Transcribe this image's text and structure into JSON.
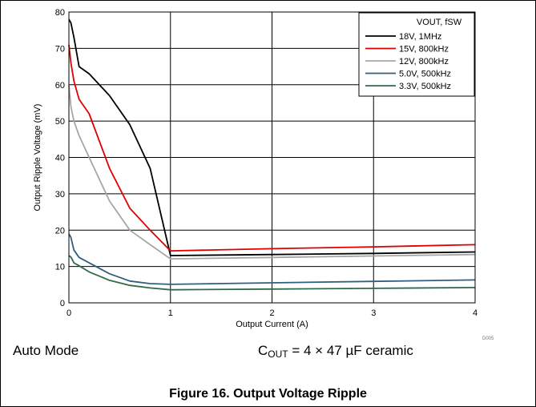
{
  "chart_data": {
    "type": "line",
    "xlabel": "Output Current (A)",
    "ylabel": "Output Ripple Voltage (mV)",
    "xlim": [
      0,
      4
    ],
    "ylim": [
      0,
      80
    ],
    "xticks": [
      "0",
      "1",
      "2",
      "3",
      "4"
    ],
    "yticks": [
      "0",
      "10",
      "20",
      "30",
      "40",
      "50",
      "60",
      "70",
      "80"
    ],
    "grid": true,
    "legend_position": "top-right",
    "legend_title": "VOUT, fSW",
    "figure_id": "D005",
    "series": [
      {
        "name": "18V, 1MHz",
        "color": "#000000",
        "x": [
          0,
          0.02,
          0.05,
          0.1,
          0.2,
          0.4,
          0.6,
          0.8,
          1.0,
          2.0,
          3.0,
          4.0
        ],
        "y": [
          78,
          77,
          73,
          65,
          63,
          57,
          49,
          37,
          13,
          13.3,
          13.6,
          14
        ]
      },
      {
        "name": "15V, 800kHz",
        "color": "#e00000",
        "x": [
          0,
          0.02,
          0.05,
          0.1,
          0.2,
          0.4,
          0.6,
          0.8,
          1.0,
          2.0,
          3.0,
          4.0
        ],
        "y": [
          71,
          66,
          61,
          56,
          52,
          37,
          26,
          20,
          14.3,
          14.9,
          15.4,
          16
        ]
      },
      {
        "name": "12V, 800kHz",
        "color": "#a6a6a6",
        "x": [
          0,
          0.02,
          0.05,
          0.1,
          0.2,
          0.4,
          0.6,
          0.8,
          1.0,
          2.0,
          3.0,
          4.0
        ],
        "y": [
          60,
          54,
          50,
          46,
          40,
          28,
          20,
          16,
          12.1,
          12.5,
          12.9,
          13.3
        ]
      },
      {
        "name": "5.0V, 500kHz",
        "color": "#2e5f7f",
        "x": [
          0,
          0.02,
          0.05,
          0.1,
          0.2,
          0.4,
          0.6,
          0.8,
          1.0,
          2.0,
          3.0,
          4.0
        ],
        "y": [
          19,
          18,
          14.5,
          12.5,
          11,
          8,
          6,
          5.3,
          5.1,
          5.5,
          5.9,
          6.3
        ]
      },
      {
        "name": "3.3V, 500kHz",
        "color": "#2f6b4a",
        "x": [
          0,
          0.02,
          0.05,
          0.1,
          0.2,
          0.4,
          0.6,
          0.8,
          1.0,
          2.0,
          3.0,
          4.0
        ],
        "y": [
          13,
          12.6,
          11,
          10.2,
          8.5,
          6.2,
          4.8,
          4.1,
          3.6,
          3.8,
          4.0,
          4.2
        ]
      }
    ]
  },
  "conditions": {
    "mode": "Auto Mode",
    "cout_prefix": "C",
    "cout_sub": "OUT",
    "cout_rest": " = 4 × 47 µF ceramic"
  },
  "caption": "Figure 16. Output Voltage Ripple"
}
